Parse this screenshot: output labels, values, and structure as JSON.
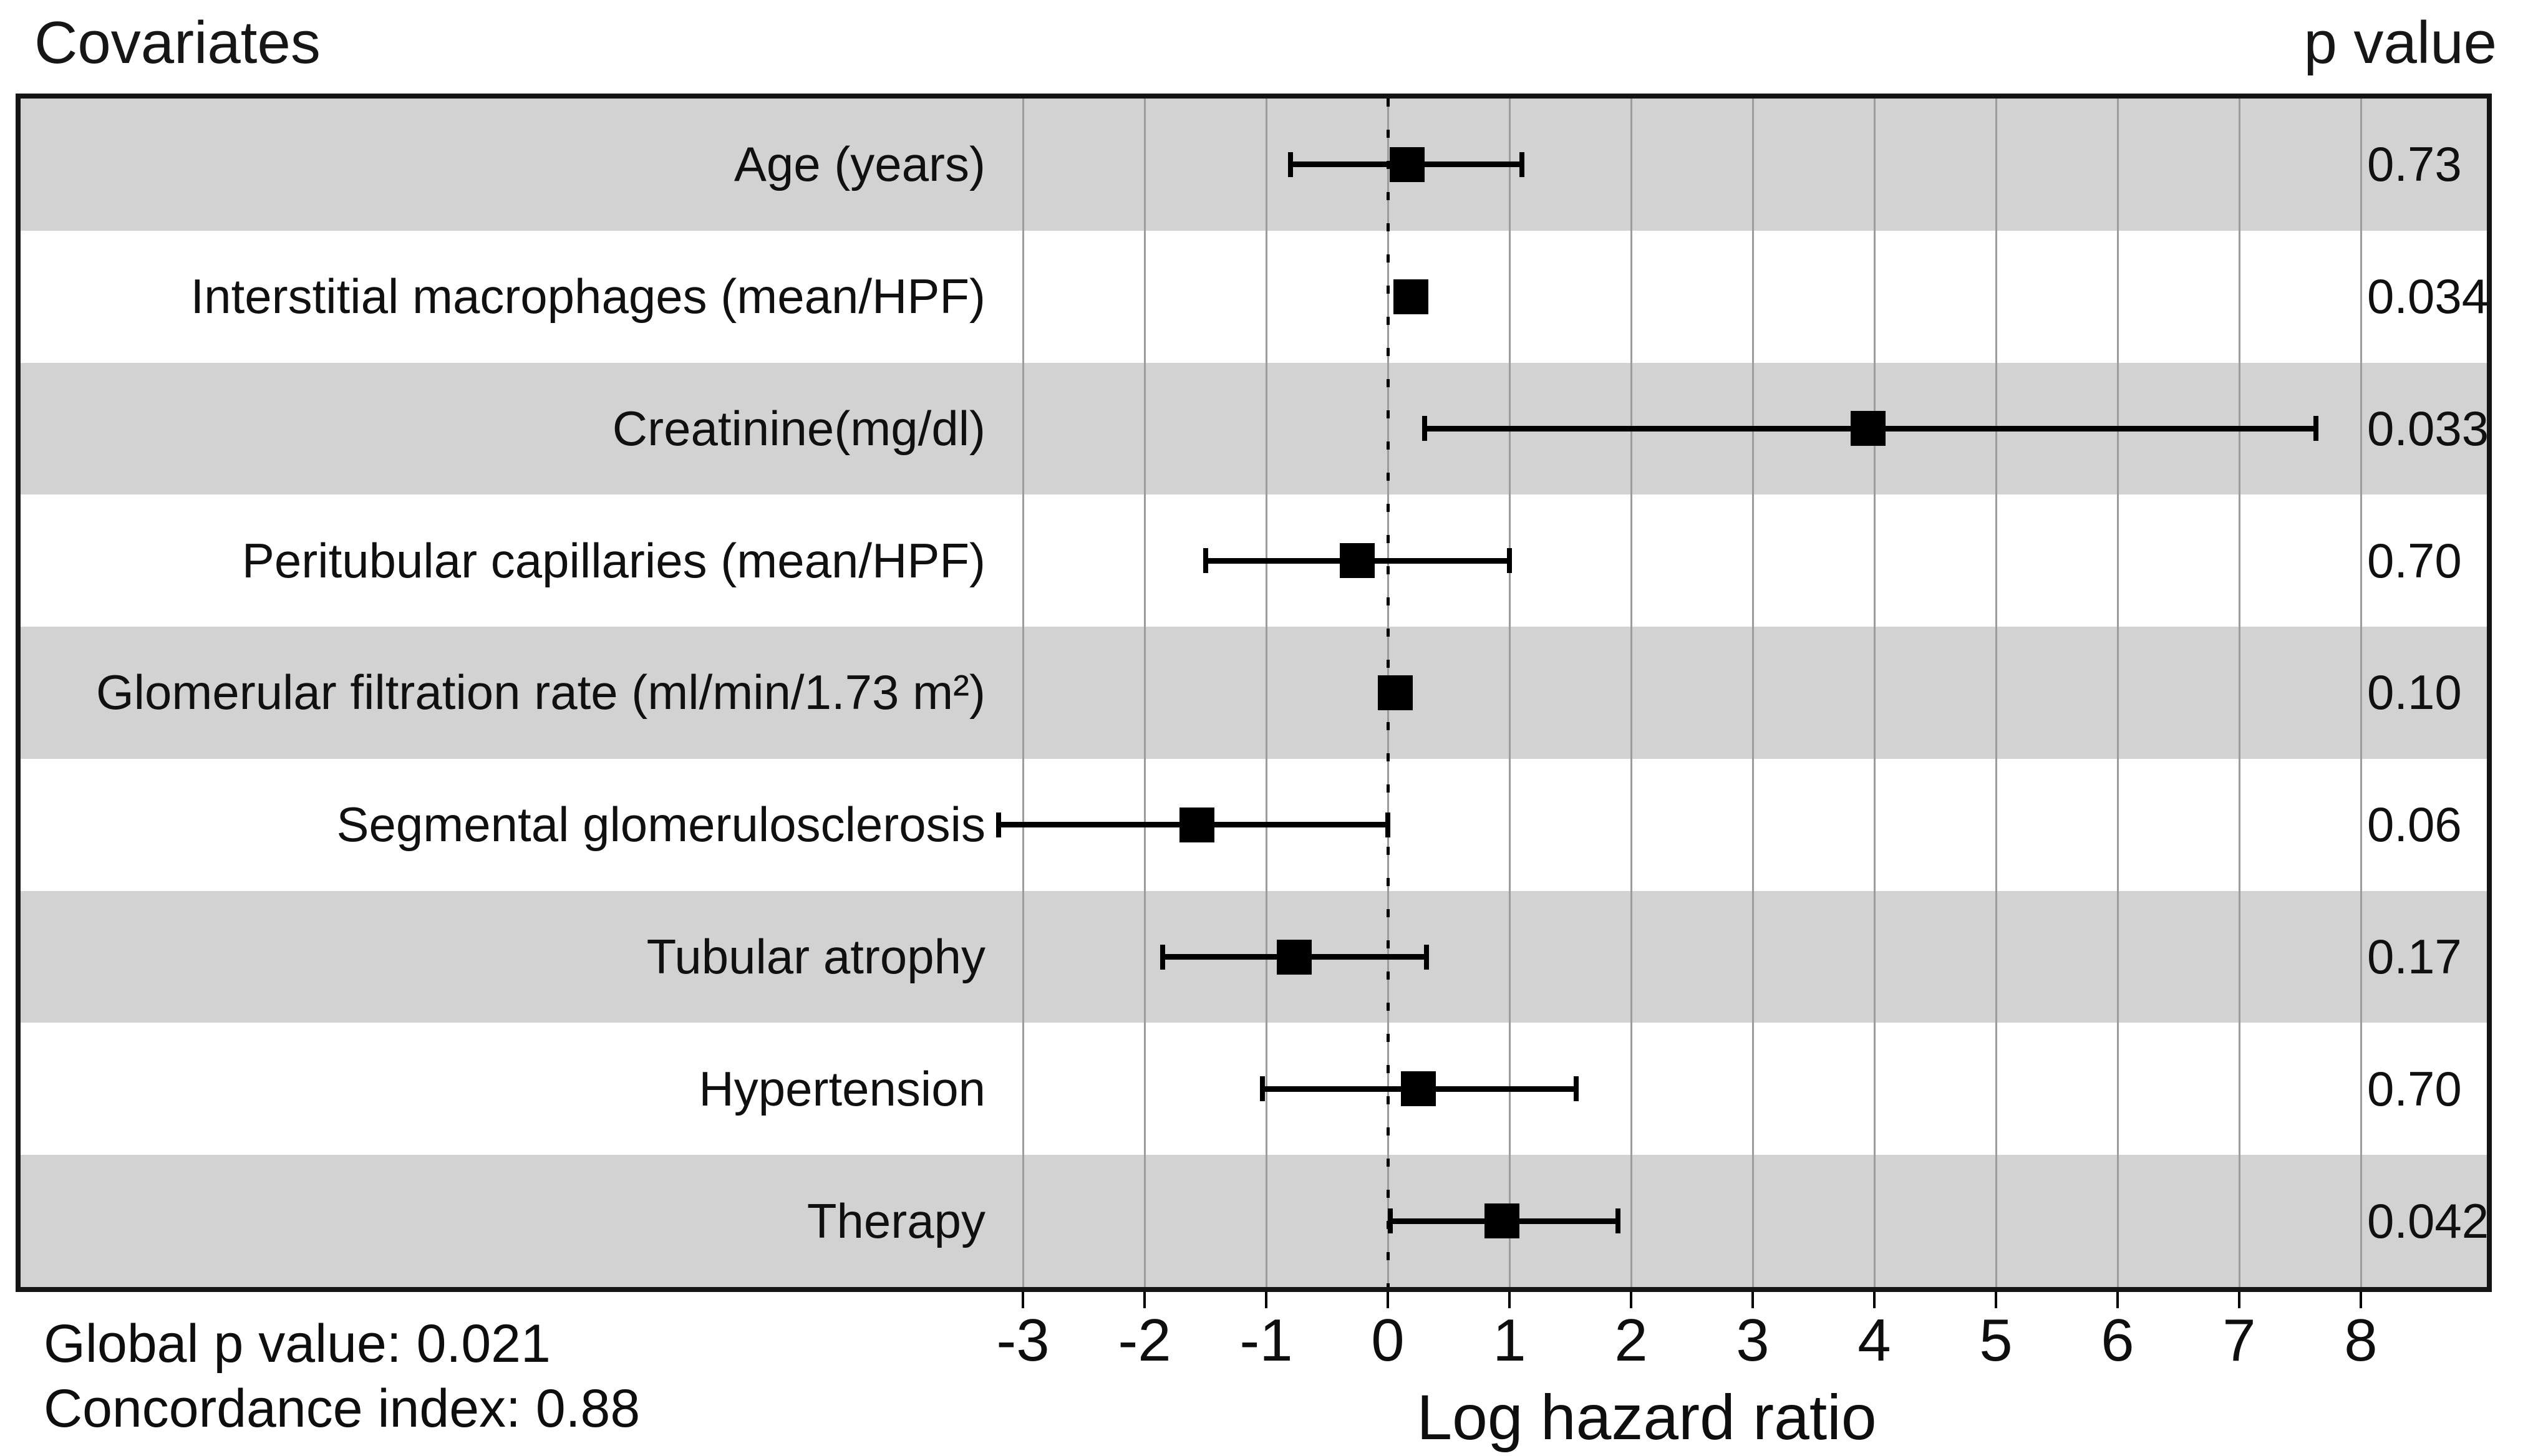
{
  "header": {
    "title": "Covariates",
    "p_value_header": "p value"
  },
  "footer": {
    "global_p": "Global p value: 0.021",
    "concordance": "Concordance index: 0.88"
  },
  "colors": {
    "stripe": "#d2d2d2",
    "gridline": "#9c9c9c",
    "marker": "#000000",
    "border": "#141414",
    "reference_line": "#000000"
  },
  "chart_data": {
    "type": "forest",
    "title": "Covariates",
    "xlabel": "Log hazard ratio",
    "x_ticks": [
      -3,
      -2,
      -1,
      0,
      1,
      2,
      3,
      4,
      5,
      6,
      7,
      8
    ],
    "x_range": [
      -3,
      8
    ],
    "reference_line_x": 0,
    "grid": "vertical-gridline-at-each-tick",
    "rows": [
      {
        "label": "Age (years)",
        "estimate": 0.16,
        "ci_lower": -0.8,
        "ci_upper": 1.1,
        "ci_visible": true,
        "p_value": "0.73",
        "shaded": true
      },
      {
        "label": "Interstitial macrophages (mean/HPF)",
        "estimate": 0.19,
        "ci_lower": 0.02,
        "ci_upper": 0.37,
        "ci_visible": false,
        "p_value": "0.034",
        "shaded": false
      },
      {
        "label": "Creatinine(mg/dl)",
        "estimate": 3.95,
        "ci_lower": 0.3,
        "ci_upper": 7.63,
        "ci_visible": true,
        "p_value": "0.033",
        "shaded": true
      },
      {
        "label": "Peritubular capillaries (mean/HPF)",
        "estimate": -0.25,
        "ci_lower": -1.5,
        "ci_upper": 1.0,
        "ci_visible": true,
        "p_value": "0.70",
        "shaded": false
      },
      {
        "label": "Glomerular filtration rate (ml/min/1.73 m²)",
        "estimate": 0.06,
        "ci_lower": -0.08,
        "ci_upper": 0.18,
        "ci_visible": false,
        "p_value": "0.10",
        "shaded": true
      },
      {
        "label": "Segmental glomerulosclerosis",
        "estimate": -1.57,
        "ci_lower": -3.2,
        "ci_upper": 0.0,
        "ci_visible": true,
        "p_value": "0.06",
        "shaded": false
      },
      {
        "label": "Tubular atrophy",
        "estimate": -0.77,
        "ci_lower": -1.85,
        "ci_upper": 0.32,
        "ci_visible": true,
        "p_value": "0.17",
        "shaded": true
      },
      {
        "label": "Hypertension",
        "estimate": 0.25,
        "ci_lower": -1.03,
        "ci_upper": 1.55,
        "ci_visible": true,
        "p_value": "0.70",
        "shaded": false
      },
      {
        "label": "Therapy",
        "estimate": 0.94,
        "ci_lower": 0.02,
        "ci_upper": 1.89,
        "ci_visible": true,
        "p_value": "0.042",
        "shaded": true
      }
    ],
    "footnotes": [
      "Global p value: 0.021",
      "Concordance index: 0.88"
    ]
  }
}
